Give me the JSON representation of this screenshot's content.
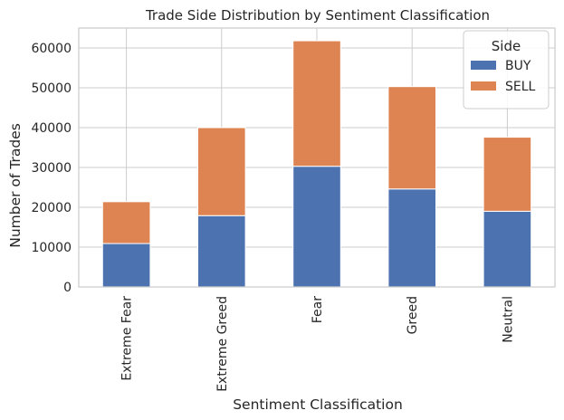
{
  "chart_data": {
    "type": "bar",
    "stacked": true,
    "title": "Trade Side Distribution by Sentiment Classification",
    "xlabel": "Sentiment Classification",
    "ylabel": "Number of Trades",
    "categories": [
      "Extreme Fear",
      "Extreme Greed",
      "Fear",
      "Greed",
      "Neutral"
    ],
    "series": [
      {
        "name": "BUY",
        "color": "#4c72b0",
        "values": [
          10900,
          17900,
          30300,
          24600,
          19000
        ]
      },
      {
        "name": "SELL",
        "color": "#dd8452",
        "values": [
          10500,
          22100,
          31500,
          25700,
          18600
        ]
      }
    ],
    "ylim": [
      0,
      65000
    ],
    "yticks": [
      0,
      10000,
      20000,
      30000,
      40000,
      50000,
      60000
    ],
    "grid": true,
    "legend": {
      "title": "Side",
      "placement": "top-right"
    }
  }
}
